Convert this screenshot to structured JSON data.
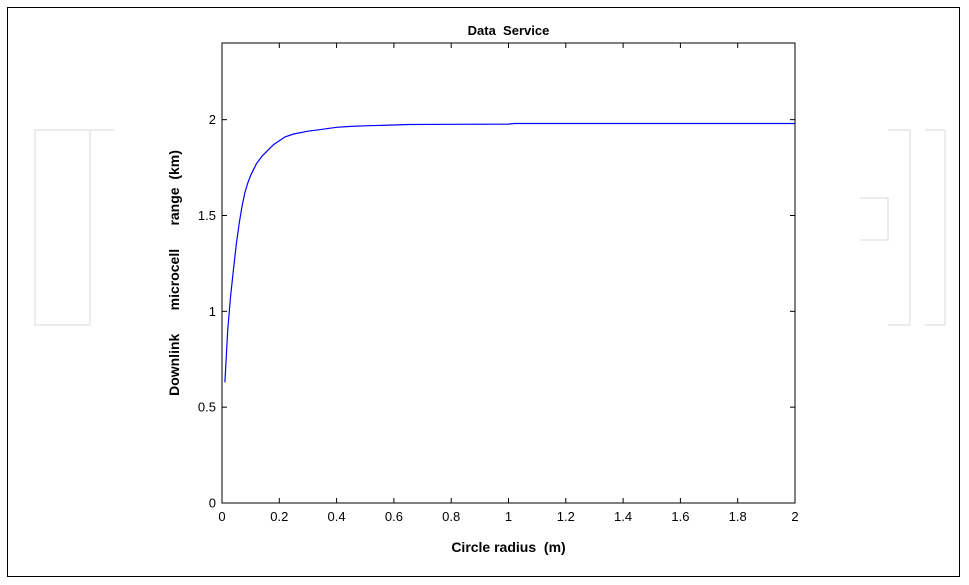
{
  "chart_data": {
    "type": "line",
    "title": "Data  Service",
    "xlabel": "Circle radius  (m)",
    "ylabel": "Downlink      microcell      range  (km)",
    "xlim": [
      0,
      2
    ],
    "ylim": [
      0,
      2.4
    ],
    "xticks": [
      0,
      0.2,
      0.4,
      0.6,
      0.8,
      1,
      1.2,
      1.4,
      1.6,
      1.8,
      2
    ],
    "xtick_labels": [
      "0",
      "0.2",
      "0.4",
      "0.6",
      "0.8",
      "1",
      "1.2",
      "1.4",
      "1.6",
      "1.8",
      "2"
    ],
    "yticks": [
      0,
      0.5,
      1,
      1.5,
      2
    ],
    "ytick_labels": [
      "0",
      "0.5",
      "1",
      "1.5",
      "2"
    ],
    "grid": false,
    "series": [
      {
        "color": "#0000ff",
        "x": [
          0.01,
          0.02,
          0.03,
          0.04,
          0.05,
          0.06,
          0.07,
          0.08,
          0.09,
          0.1,
          0.12,
          0.14,
          0.16,
          0.18,
          0.2,
          0.22,
          0.25,
          0.3,
          0.35,
          0.4,
          0.45,
          0.5,
          0.6,
          0.65,
          0.8,
          1.0,
          1.02,
          1.5,
          2.0
        ],
        "y": [
          0.63,
          0.9,
          1.08,
          1.22,
          1.35,
          1.46,
          1.55,
          1.62,
          1.67,
          1.71,
          1.77,
          1.81,
          1.84,
          1.87,
          1.89,
          1.91,
          1.925,
          1.94,
          1.95,
          1.96,
          1.965,
          1.968,
          1.972,
          1.975,
          1.976,
          1.977,
          1.98,
          1.98,
          1.98
        ]
      }
    ]
  }
}
